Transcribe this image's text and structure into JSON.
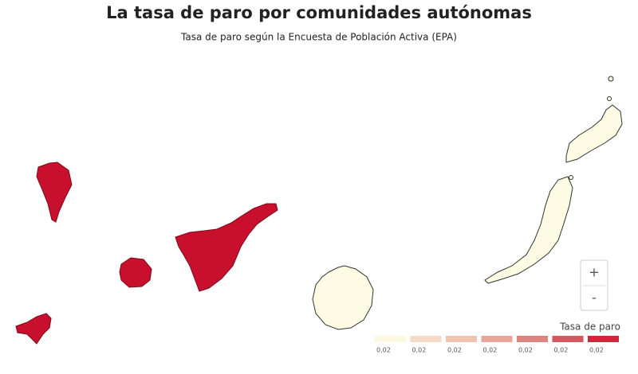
{
  "header": {
    "title": "La tasa de paro por comunidades autónomas",
    "subtitle": "Tasa de paro según la Encuesta de Población Activa (EPA)"
  },
  "map": {
    "zoom_in": "+",
    "zoom_out": "-"
  },
  "legend": {
    "title": "Tasa de paro",
    "items": [
      {
        "label": "0,02",
        "color": "#fdf8e1"
      },
      {
        "label": "0,02",
        "color": "#f6dcc8"
      },
      {
        "label": "0,02",
        "color": "#f0c2b0"
      },
      {
        "label": "0,02",
        "color": "#e8a59b"
      },
      {
        "label": "0,02",
        "color": "#df8580"
      },
      {
        "label": "0,02",
        "color": "#d55a60"
      },
      {
        "label": "0,02",
        "color": "#cc2a3a"
      }
    ]
  }
}
